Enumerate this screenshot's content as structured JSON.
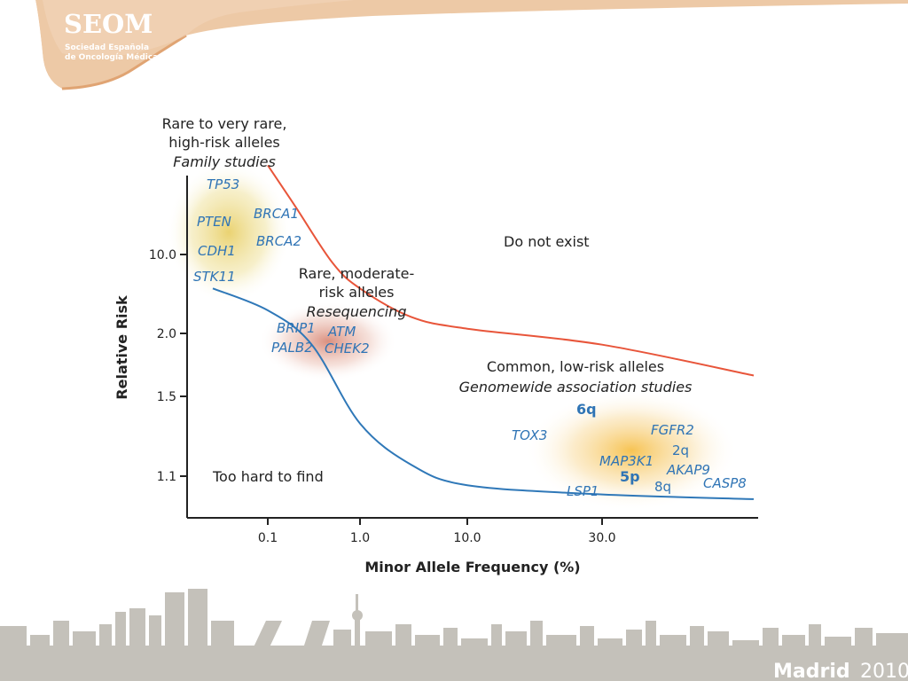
{
  "header": {
    "logo_title": "SEOM",
    "logo_line1": "Sociedad Española",
    "logo_line2": "de Oncología Médica"
  },
  "footer": {
    "city": "Madrid",
    "year": "2010"
  },
  "colors": {
    "upper_curve": "#e8553a",
    "lower_curve": "#2f78b8",
    "gene_text": "#2f74b5",
    "header_band": "#e8b98f",
    "skyline": "#bdbab3"
  },
  "chart_data": {
    "type": "line",
    "xlabel": "Minor Allele Frequency (%)",
    "ylabel": "Relative Risk",
    "x_scale": "log",
    "y_ticks": [
      "1.1",
      "1.5",
      "2.0",
      "10.0"
    ],
    "x_ticks": [
      "0.1",
      "1.0",
      "10.0",
      "30.0"
    ],
    "grid": false,
    "series": [
      {
        "name": "",
        "color": "#e8553a",
        "points": [
          [
            0.1,
            30
          ],
          [
            0.2,
            18
          ],
          [
            0.5,
            8.5
          ],
          [
            1,
            5.0
          ],
          [
            3,
            2.8
          ],
          [
            10,
            2.2
          ],
          [
            30,
            1.9
          ],
          [
            100,
            1.65
          ]
        ]
      },
      {
        "name": "",
        "color": "#2f78b8",
        "points": [
          [
            0.05,
            5
          ],
          [
            0.1,
            3.2
          ],
          [
            0.3,
            1.9
          ],
          [
            1,
            1.35
          ],
          [
            3,
            1.15
          ],
          [
            10,
            1.08
          ],
          [
            30,
            1.06
          ],
          [
            100,
            1.05
          ]
        ]
      }
    ],
    "groups": [
      {
        "heading": [
          "Rare to very rare,",
          "high-risk alleles"
        ],
        "method": "Family studies",
        "genes": [
          "TP53",
          "PTEN",
          "BRCA1",
          "CDH1",
          "BRCA2",
          "STK11"
        ]
      },
      {
        "heading": [
          "Rare, moderate-",
          "risk alleles"
        ],
        "method": "Resequencing",
        "genes": [
          "BRIP1",
          "ATM",
          "PALB2",
          "CHEK2"
        ]
      },
      {
        "heading": [
          "Common, low-risk alleles"
        ],
        "method": "Genomewide association studies",
        "genes": [
          "6q",
          "TOX3",
          "FGFR2",
          "2q",
          "MAP3K1",
          "AKAP9",
          "5p",
          "8q",
          "CASP8",
          "LSP1"
        ]
      }
    ],
    "annotations": [
      "Do not exist",
      "Too hard to find"
    ]
  }
}
